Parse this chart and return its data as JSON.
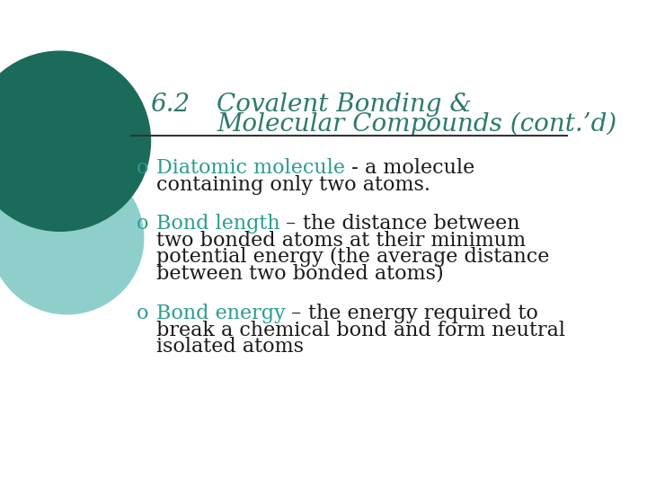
{
  "bg_color": "#ffffff",
  "title_num": "6.2",
  "title_text1": "Covalent Bonding &",
  "title_text2": "Molecular Compounds (cont.’d)",
  "title_color": "#2b7a6e",
  "circle_dark_color": "#1a6b5a",
  "circle_light_color": "#8fcfcb",
  "line_color": "#333333",
  "bullet_color": "#2a9d8f",
  "bullet_char": "o",
  "title_fontsize": 20,
  "body_fontsize": 16,
  "bullets": [
    {
      "term": "Diatomic molecule",
      "separator": " - ",
      "term_color": "#2a9d8f",
      "body_lines": [
        "a molecule",
        "containing only two atoms."
      ],
      "body_color": "#1a1a1a"
    },
    {
      "term": "Bond length",
      "separator": " – ",
      "term_color": "#2a9d8f",
      "body_lines": [
        "the distance between",
        "two bonded atoms at their minimum",
        "potential energy (the average distance",
        "between two bonded atoms)"
      ],
      "body_color": "#1a1a1a"
    },
    {
      "term": "Bond energy",
      "separator": " – ",
      "term_color": "#2a9d8f",
      "body_lines": [
        "the energy required to",
        "break a chemical bond and form neutral",
        "isolated atoms"
      ],
      "body_color": "#1a1a1a"
    }
  ]
}
